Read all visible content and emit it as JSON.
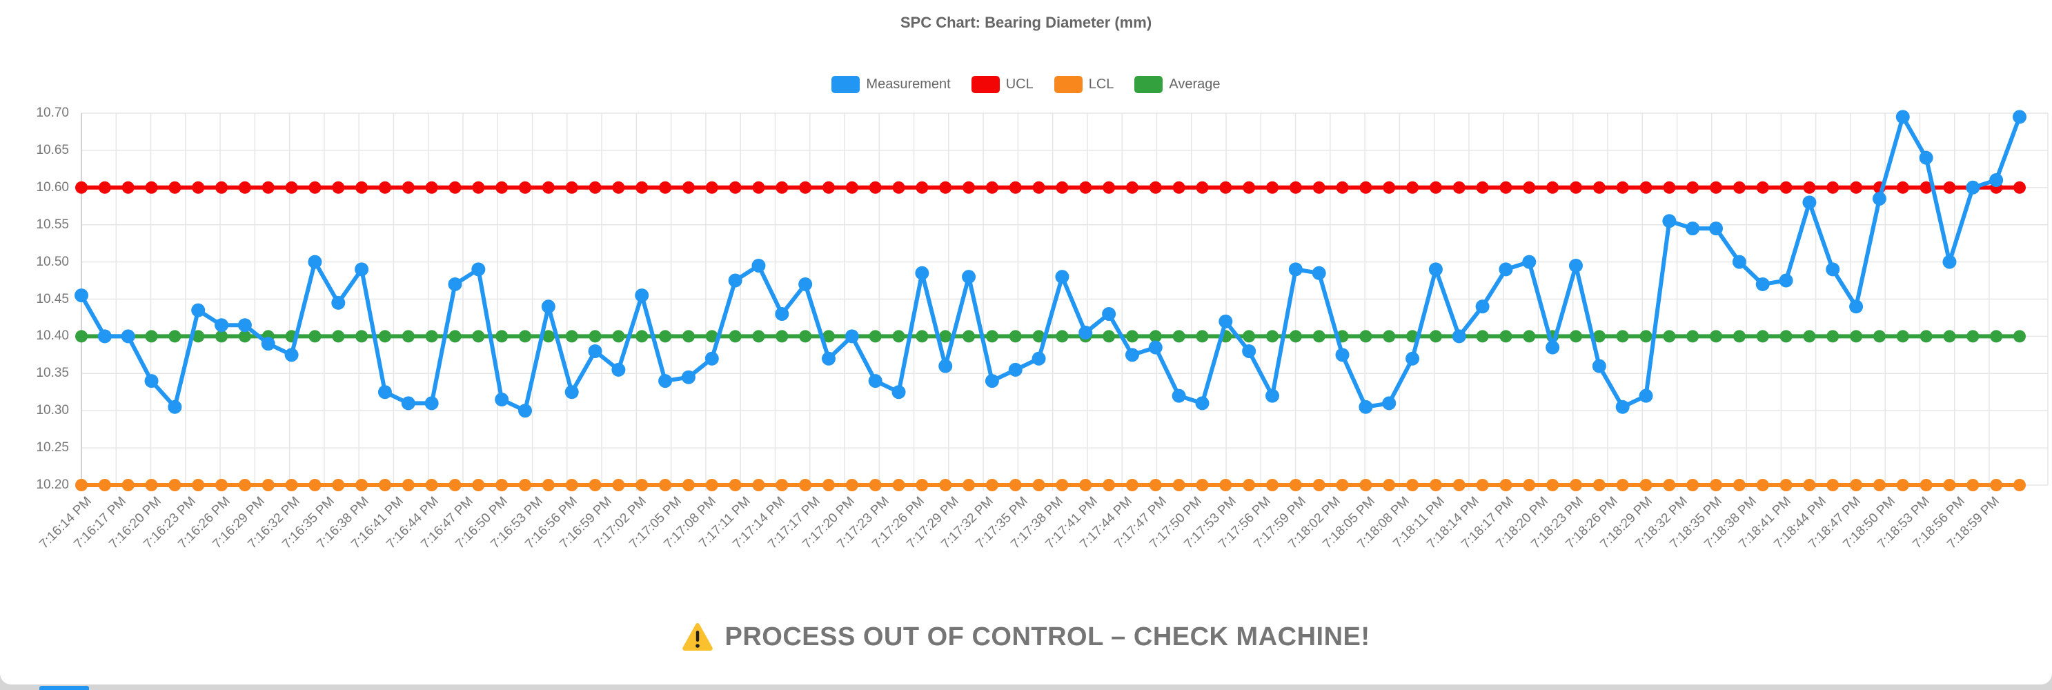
{
  "page": {
    "background_color": "#d5d5d5",
    "card_background_color": "#ffffff"
  },
  "chart": {
    "title": "SPC Chart: Bearing Diameter (mm)"
  },
  "legend": [
    {
      "label": "Measurement",
      "color": "#2196F3"
    },
    {
      "label": "UCL",
      "color": "#F40505"
    },
    {
      "label": "LCL",
      "color": "#F8871D"
    },
    {
      "label": "Average",
      "color": "#32A13E"
    }
  ],
  "warning": {
    "icon": "warning-triangle-icon",
    "icon_color": "#FBC02D",
    "text": "PROCESS OUT OF CONTROL – CHECK MACHINE!",
    "text_color": "#757575"
  },
  "chart_data": {
    "type": "line",
    "title": "SPC Chart: Bearing Diameter (mm)",
    "xlabel": "",
    "ylabel": "",
    "grid": true,
    "legend_position": "top",
    "y_axis": {
      "min": 10.2,
      "max": 10.7,
      "step": 0.05,
      "tick_labels": [
        "10.70",
        "10.65",
        "10.60",
        "10.55",
        "10.50",
        "10.45",
        "10.40",
        "10.35",
        "10.30",
        "10.25",
        "10.20"
      ]
    },
    "x_axis": {
      "tick_interval_seconds": 3,
      "sample_interval_seconds": 2,
      "tick_labels": [
        "7:16:14 PM",
        "7:16:17 PM",
        "7:16:20 PM",
        "7:16:23 PM",
        "7:16:26 PM",
        "7:16:29 PM",
        "7:16:32 PM",
        "7:16:35 PM",
        "7:16:38 PM",
        "7:16:41 PM",
        "7:16:44 PM",
        "7:16:47 PM",
        "7:16:50 PM",
        "7:16:53 PM",
        "7:16:56 PM",
        "7:16:59 PM",
        "7:17:02 PM",
        "7:17:05 PM",
        "7:17:08 PM",
        "7:17:11 PM",
        "7:17:14 PM",
        "7:17:17 PM",
        "7:17:20 PM",
        "7:17:23 PM",
        "7:17:26 PM",
        "7:17:29 PM",
        "7:17:32 PM",
        "7:17:35 PM",
        "7:17:38 PM",
        "7:17:41 PM",
        "7:17:44 PM",
        "7:17:47 PM",
        "7:17:50 PM",
        "7:17:53 PM",
        "7:17:56 PM",
        "7:17:59 PM",
        "7:18:02 PM",
        "7:18:05 PM",
        "7:18:08 PM",
        "7:18:11 PM",
        "7:18:14 PM",
        "7:18:17 PM",
        "7:18:20 PM",
        "7:18:23 PM",
        "7:18:26 PM",
        "7:18:29 PM",
        "7:18:32 PM",
        "7:18:35 PM",
        "7:18:38 PM",
        "7:18:41 PM",
        "7:18:44 PM",
        "7:18:47 PM",
        "7:18:50 PM",
        "7:18:53 PM",
        "7:18:56 PM",
        "7:18:59 PM"
      ]
    },
    "series": [
      {
        "name": "Measurement",
        "color": "#2196F3",
        "values": [
          10.455,
          10.4,
          10.4,
          10.34,
          10.305,
          10.435,
          10.415,
          10.415,
          10.39,
          10.375,
          10.5,
          10.445,
          10.49,
          10.325,
          10.31,
          10.31,
          10.47,
          10.49,
          10.315,
          10.3,
          10.44,
          10.325,
          10.38,
          10.355,
          10.455,
          10.34,
          10.345,
          10.37,
          10.475,
          10.495,
          10.43,
          10.47,
          10.37,
          10.4,
          10.34,
          10.325,
          10.485,
          10.36,
          10.48,
          10.34,
          10.355,
          10.37,
          10.48,
          10.405,
          10.43,
          10.375,
          10.385,
          10.32,
          10.31,
          10.42,
          10.38,
          10.32,
          10.49,
          10.485,
          10.375,
          10.305,
          10.31,
          10.37,
          10.49,
          10.4,
          10.44,
          10.49,
          10.5,
          10.385,
          10.495,
          10.36,
          10.305,
          10.32,
          10.555,
          10.545,
          10.545,
          10.5,
          10.47,
          10.475,
          10.58,
          10.49,
          10.44,
          10.585,
          10.695,
          10.64,
          10.5,
          10.6,
          10.61,
          10.695
        ]
      },
      {
        "name": "UCL",
        "color": "#F40505",
        "constant": 10.6
      },
      {
        "name": "LCL",
        "color": "#F8871D",
        "constant": 10.2
      },
      {
        "name": "Average",
        "color": "#32A13E",
        "constant": 10.4
      }
    ]
  }
}
